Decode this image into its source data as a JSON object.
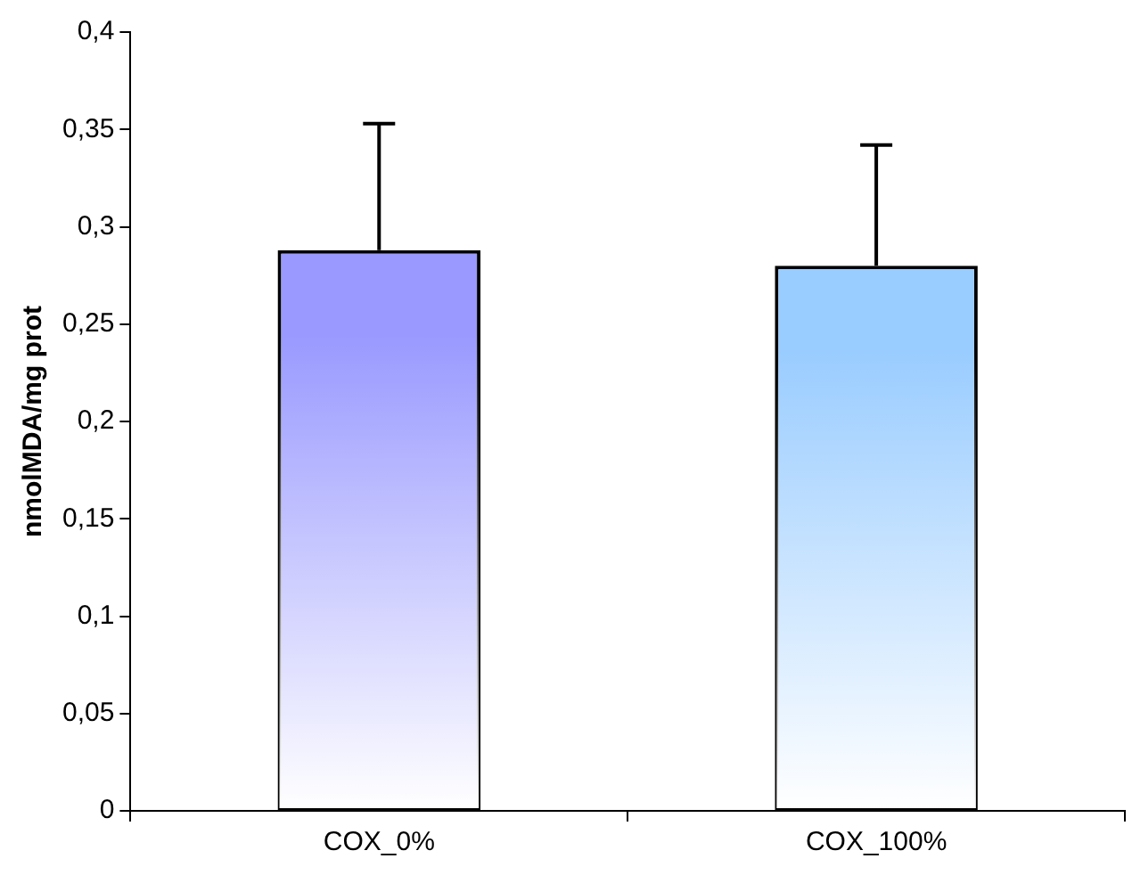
{
  "chart_data": {
    "type": "bar",
    "ylabel": "nmolMDA/mg prot",
    "categories": [
      "COX_0%",
      "COX_100%"
    ],
    "values": [
      0.288,
      0.28
    ],
    "colors": [
      "#9999ff",
      "#99ccff"
    ],
    "errors": [
      [
        0.288,
        0.353
      ],
      [
        0.28,
        0.342
      ]
    ],
    "ylim": [
      0,
      0.4
    ],
    "yticks": [
      {
        "value": 0,
        "label": "0"
      },
      {
        "value": 0.05,
        "label": "0,05"
      },
      {
        "value": 0.1,
        "label": "0,1"
      },
      {
        "value": 0.15,
        "label": "0,15"
      },
      {
        "value": 0.2,
        "label": "0,2"
      },
      {
        "value": 0.25,
        "label": "0,25"
      },
      {
        "value": 0.3,
        "label": "0,3"
      },
      {
        "value": 0.35,
        "label": "0,35"
      },
      {
        "value": 0.4,
        "label": "0,4"
      }
    ],
    "grid": false,
    "legend": false
  }
}
